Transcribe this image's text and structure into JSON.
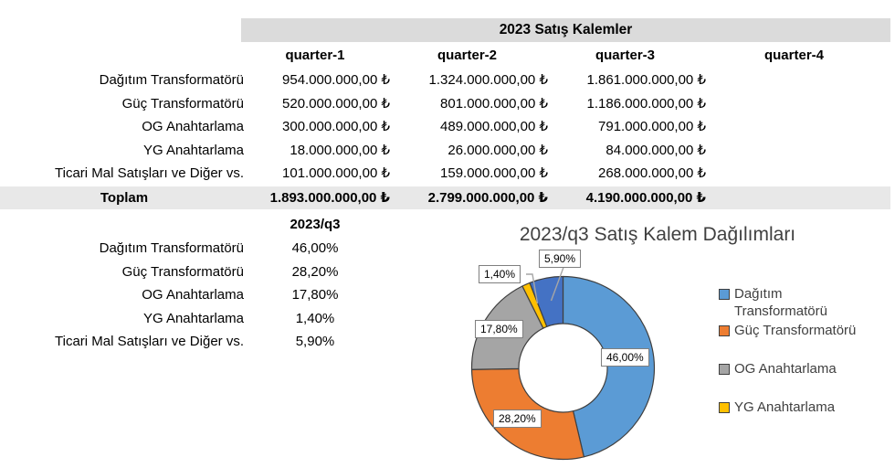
{
  "sales_table": {
    "title": "2023 Satış Kalemler",
    "columns": [
      "quarter-1",
      "quarter-2",
      "quarter-3",
      "quarter-4"
    ],
    "rows": [
      {
        "label": "Dağıtım Transformatörü",
        "q1": "954.000.000,00 ₺",
        "q2": "1.324.000.000,00 ₺",
        "q3": "1.861.000.000,00 ₺",
        "q4": ""
      },
      {
        "label": "Güç Transformatörü",
        "q1": "520.000.000,00 ₺",
        "q2": "801.000.000,00 ₺",
        "q3": "1.186.000.000,00 ₺",
        "q4": ""
      },
      {
        "label": "OG Anahtarlama",
        "q1": "300.000.000,00 ₺",
        "q2": "489.000.000,00 ₺",
        "q3": "791.000.000,00 ₺",
        "q4": ""
      },
      {
        "label": "YG Anahtarlama",
        "q1": "18.000.000,00 ₺",
        "q2": "26.000.000,00 ₺",
        "q3": "84.000.000,00 ₺",
        "q4": ""
      },
      {
        "label": "Ticari Mal Satışları ve Diğer vs.",
        "q1": "101.000.000,00 ₺",
        "q2": "159.000.000,00 ₺",
        "q3": "268.000.000,00 ₺",
        "q4": ""
      }
    ],
    "total": {
      "label": "Toplam",
      "q1": "1.893.000.000,00 ₺",
      "q2": "2.799.000.000,00 ₺",
      "q3": "4.190.000.000,00 ₺",
      "q4": ""
    }
  },
  "percent_table": {
    "header": "2023/q3",
    "rows": [
      {
        "label": "Dağıtım Transformatörü",
        "value": "46,00%"
      },
      {
        "label": "Güç Transformatörü",
        "value": "28,20%"
      },
      {
        "label": "OG Anahtarlama",
        "value": "17,80%"
      },
      {
        "label": "YG Anahtarlama",
        "value": "1,40%"
      },
      {
        "label": "Ticari Mal Satışları ve Diğer vs.",
        "value": "5,90%"
      }
    ]
  },
  "chart_data": {
    "type": "pie",
    "donut": true,
    "title": "2023/q3 Satış Kalem Dağılımları",
    "categories": [
      "Dağıtım Transformatörü",
      "Güç Transformatörü",
      "OG Anahtarlama",
      "YG Anahtarlama",
      "Ticari Mal Satışları ve Diğer vs."
    ],
    "values": [
      46.0,
      28.2,
      17.8,
      1.4,
      5.9
    ],
    "value_labels": [
      "46,00%",
      "28,20%",
      "17,80%",
      "1,40%",
      "5,90%"
    ],
    "colors": [
      "#5B9BD5",
      "#ED7D31",
      "#A5A5A5",
      "#FFC000",
      "#4472C4"
    ],
    "legend": [
      "Dağıtım Transformatörü",
      "Güç Transformatörü",
      "OG Anahtarlama",
      "YG Anahtarlama"
    ],
    "legend_position": "right",
    "start_angle_deg": 0,
    "direction": "clockwise"
  },
  "colors": {
    "title_band_bg": "#DBDBDB",
    "total_band_bg": "#E8E8E8",
    "chart_text": "#404040",
    "slice_border": "#3F3F3F",
    "leader_line": "#A6A6A6"
  }
}
